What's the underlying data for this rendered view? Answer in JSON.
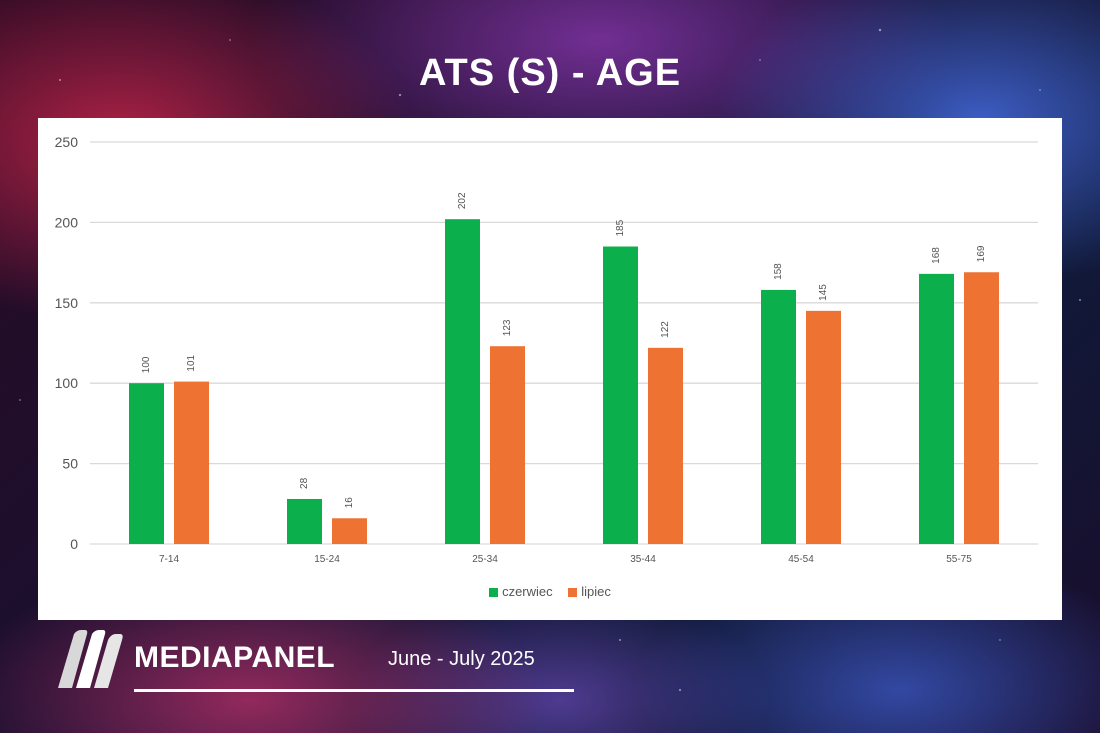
{
  "page": {
    "title": "ATS (S) - AGE",
    "brand": "MEDIAPANEL",
    "period": "June - July 2025"
  },
  "colors": {
    "czerwiec": "#0bb04c",
    "lipiec": "#ee7231"
  },
  "chart_data": {
    "type": "bar",
    "title": "",
    "xlabel": "",
    "ylabel": "",
    "ylim": [
      0,
      250
    ],
    "yticks": [
      0,
      50,
      100,
      150,
      200,
      250
    ],
    "grid": true,
    "legend": "bottom-center",
    "categories": [
      "7-14",
      "15-24",
      "25-34",
      "35-44",
      "45-54",
      "55-75"
    ],
    "series": [
      {
        "name": "czerwiec",
        "values": [
          100,
          28,
          202,
          185,
          158,
          168
        ]
      },
      {
        "name": "lipiec",
        "values": [
          101,
          16,
          123,
          122,
          145,
          169
        ]
      }
    ]
  }
}
